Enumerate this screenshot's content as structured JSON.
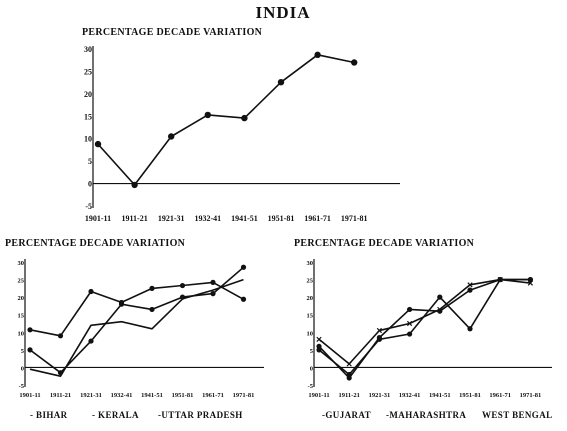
{
  "page_title": "INDIA",
  "chart_data": [
    {
      "type": "line",
      "title": "PERCENTAGE DECADE VARIATION",
      "categories": [
        "1901-11",
        "1911-21",
        "1921-31",
        "1932-41",
        "1941-51",
        "1951-81",
        "1961-71",
        "1971-81"
      ],
      "y_ticks": [
        30,
        25,
        20,
        15,
        10,
        5,
        0,
        -5
      ],
      "ylim": [
        -5,
        30
      ],
      "series": [
        {
          "values": [
            8.8,
            -0.3,
            10.5,
            15.3,
            14.6,
            22.6,
            28.7,
            27.0
          ]
        }
      ]
    },
    {
      "type": "line",
      "title": "PERCENTAGE DECADE VARIATION",
      "categories": [
        "1901-11",
        "1911-21",
        "1921-31",
        "1932-41",
        "1941-51",
        "1951-81",
        "1961-71",
        "1971-81"
      ],
      "y_ticks": [
        30,
        25,
        20,
        15,
        10,
        5,
        0,
        -5
      ],
      "ylim": [
        -5,
        30
      ],
      "legend": [
        "- BIHAR",
        "- KERALA",
        "-UTTAR PRADESH"
      ],
      "series": [
        {
          "values": [
            10.7,
            9.0,
            21.6,
            18.5,
            22.5,
            23.3,
            24.2,
            19.4
          ]
        },
        {
          "values": [
            5.0,
            -1.5,
            7.5,
            18.0,
            16.5,
            20.0,
            21.0,
            28.5
          ]
        },
        {
          "values": [
            -0.5,
            -2.5,
            12.0,
            13.0,
            11.0,
            19.5,
            22.0,
            25.0
          ]
        }
      ]
    },
    {
      "type": "line",
      "title": "PERCENTAGE DECADE VARIATION",
      "categories": [
        "1901-11",
        "1911-21",
        "1921-31",
        "1932-41",
        "1941-51",
        "1951-81",
        "1961-71",
        "1971-81"
      ],
      "y_ticks": [
        30,
        25,
        20,
        15,
        10,
        5,
        0,
        -5
      ],
      "ylim": [
        -5,
        30
      ],
      "legend": [
        "-GUJARAT",
        "-MAHARASHTRA",
        "WEST BENGAL"
      ],
      "series": [
        {
          "values": [
            6.0,
            -3.0,
            8.5,
            16.5,
            16.0,
            22.0,
            25.0,
            25.0
          ]
        },
        {
          "values": [
            8.0,
            1.0,
            10.5,
            12.5,
            16.5,
            23.5,
            25.0,
            24.0
          ]
        },
        {
          "values": [
            5.0,
            -2.0,
            8.0,
            9.5,
            20.0,
            11.0,
            25.0,
            25.0
          ]
        }
      ]
    }
  ]
}
